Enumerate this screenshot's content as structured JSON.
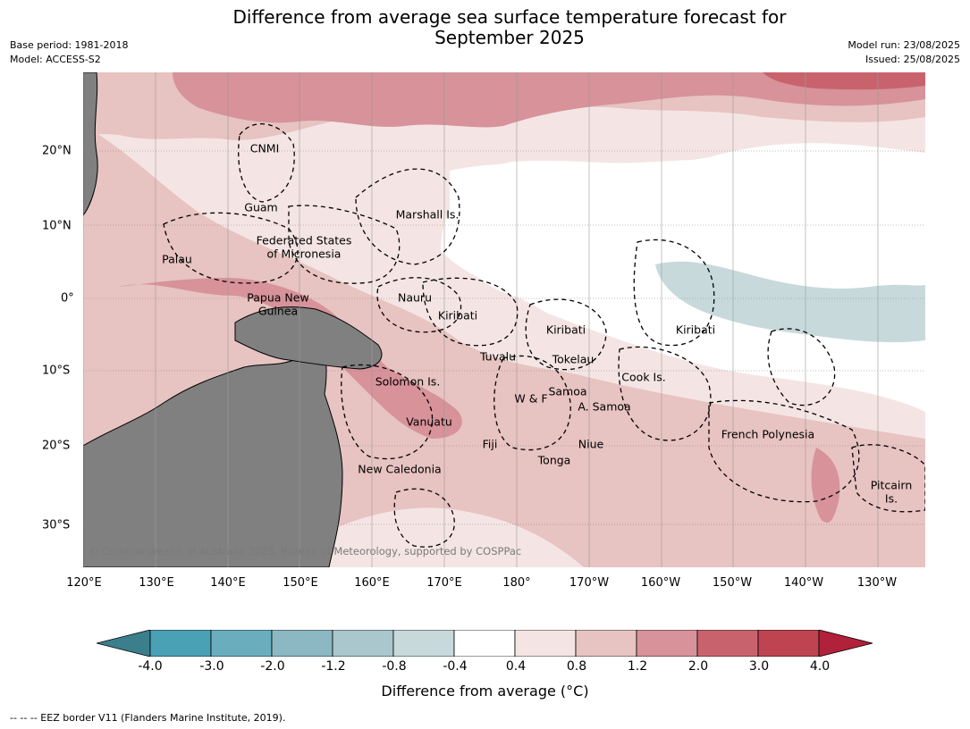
{
  "title_line1": "Difference from average sea surface temperature forecast for",
  "title_line2": "September 2025",
  "meta": {
    "base_period": "Base period: 1981-2018",
    "model": "Model: ACCESS-S2",
    "model_run": "Model run: 23/08/2025",
    "issued": "Issued: 25/08/2025"
  },
  "axes": {
    "lon_labels": [
      "120°E",
      "130°E",
      "140°E",
      "150°E",
      "160°E",
      "170°E",
      "180°",
      "170°W",
      "160°W",
      "150°W",
      "140°W",
      "130°W"
    ],
    "lat_labels": [
      "20°N",
      "10°N",
      "0°",
      "10°S",
      "20°S",
      "30°S"
    ]
  },
  "places": [
    {
      "name": "CNMI"
    },
    {
      "name": "Guam"
    },
    {
      "name": "Marshall Is."
    },
    {
      "name": "Federated States"
    },
    {
      "name": "of Micronesia"
    },
    {
      "name": "Palau"
    },
    {
      "name": "Papua New"
    },
    {
      "name": "Guinea"
    },
    {
      "name": "Nauru"
    },
    {
      "name": "Kiribati"
    },
    {
      "name": "Kiribati"
    },
    {
      "name": "Kiribati"
    },
    {
      "name": "Tuvalu"
    },
    {
      "name": "Tokelau"
    },
    {
      "name": "Cook Is."
    },
    {
      "name": "Solomon Is."
    },
    {
      "name": "Samoa"
    },
    {
      "name": "W & F"
    },
    {
      "name": "A. Samoa"
    },
    {
      "name": "Vanuatu"
    },
    {
      "name": "Fiji"
    },
    {
      "name": "Niue"
    },
    {
      "name": "Tonga"
    },
    {
      "name": "French Polynesia"
    },
    {
      "name": "New Caledonia"
    },
    {
      "name": "Pitcairn"
    },
    {
      "name": "Is."
    }
  ],
  "copyright": "© Commonwealth of Australia 2025, Bureau of Meteorology, supported by COSPPac",
  "colorbar": {
    "ticks": [
      "-4.0",
      "-3.0",
      "-2.0",
      "-1.2",
      "-0.8",
      "-0.4",
      "0.4",
      "0.8",
      "1.2",
      "2.0",
      "3.0",
      "4.0"
    ],
    "colors": [
      "#3b7f8d",
      "#4aa0b5",
      "#6aaebe",
      "#8bb8c3",
      "#a9c7cd",
      "#c8d9dc",
      "#ffffff",
      "#f4e5e4",
      "#e7c3c1",
      "#d7929a",
      "#c8636d",
      "#be4452",
      "#b2213a"
    ],
    "label": "Difference from average (°C)"
  },
  "footnote": "--  --  -- EEZ border V11 (Flanders Marine Institute, 2019).",
  "colors": {
    "land": "#808080",
    "warm_light": "#f4e5e4",
    "warm_mid": "#e7c3c1",
    "warm_strong": "#d7929a",
    "warm_stronger": "#c8636d",
    "cool_light": "#c8d9dc"
  }
}
